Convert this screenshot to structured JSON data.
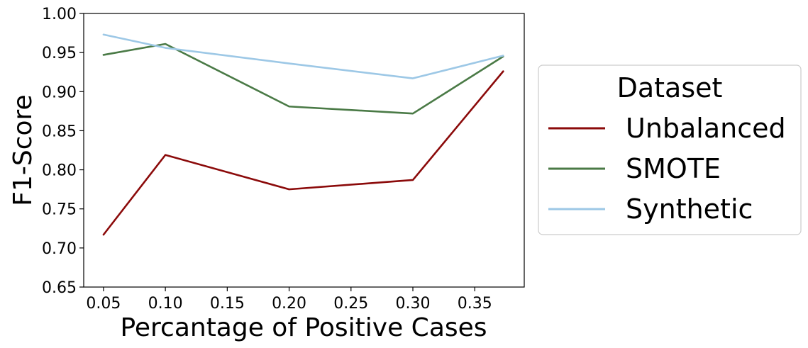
{
  "chart_data": {
    "type": "line",
    "title": "",
    "xlabel": "Percantage of Positive Cases",
    "ylabel": "F1-Score",
    "xlim": [
      0.034,
      0.39
    ],
    "ylim": [
      0.65,
      1.0
    ],
    "x_ticks": [
      "0.05",
      "0.10",
      "0.15",
      "0.20",
      "0.25",
      "0.30",
      "0.35"
    ],
    "y_ticks": [
      "0.65",
      "0.70",
      "0.75",
      "0.80",
      "0.85",
      "0.90",
      "0.95",
      "1.00"
    ],
    "x": [
      0.05,
      0.1,
      0.2,
      0.3,
      0.373
    ],
    "grid": false,
    "legend": {
      "title": "Dataset",
      "placement": "outside-right"
    },
    "series": [
      {
        "name": "Unbalanced",
        "color": "#8b0a0a",
        "values": [
          0.717,
          0.819,
          0.775,
          0.787,
          0.926
        ]
      },
      {
        "name": "SMOTE",
        "color": "#4a7a46",
        "values": [
          0.947,
          0.961,
          0.881,
          0.872,
          0.945
        ]
      },
      {
        "name": "Synthetic",
        "color": "#9dc8e6",
        "values": [
          0.973,
          0.956,
          0.936,
          0.917,
          0.946
        ]
      }
    ]
  }
}
